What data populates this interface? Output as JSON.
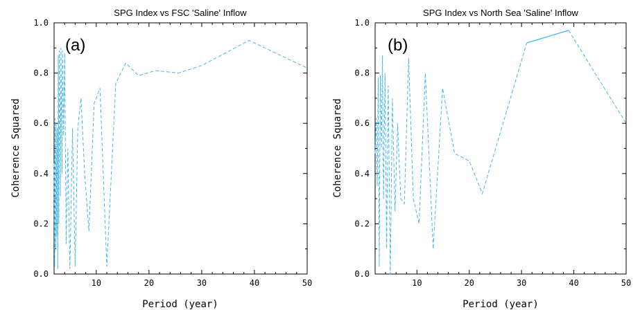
{
  "chart_data": [
    {
      "type": "line",
      "panel_label": "(a)",
      "title": "SPG Index vs FSC 'Saline' Inflow",
      "xlabel": "Period (year)",
      "ylabel": "Coherence Squared",
      "xlim": [
        2,
        50
      ],
      "ylim": [
        0,
        1
      ],
      "xticks": [
        10,
        20,
        30,
        40,
        50
      ],
      "yticks": [
        0.0,
        0.2,
        0.4,
        0.6,
        0.8,
        1.0
      ],
      "xtick_labels": [
        "10",
        "20",
        "30",
        "40",
        "50"
      ],
      "ytick_labels": [
        "0.0",
        "0.2",
        "0.4",
        "0.6",
        "0.8",
        "1.0"
      ],
      "line_color": "#45b7e6",
      "series": [
        {
          "style": "dashed",
          "x": [
            2.0,
            2.1,
            2.2,
            2.3,
            2.4,
            2.5,
            2.6,
            2.7,
            2.8,
            2.9,
            3.0,
            3.2,
            3.3,
            3.5,
            3.6,
            3.8,
            4.0,
            4.3,
            4.6,
            5.0,
            5.5,
            6.0,
            6.5,
            7.1,
            7.8,
            8.6,
            9.6,
            10.7,
            12.0,
            13.7,
            15.6,
            18.0,
            21.3,
            25.6,
            30.0,
            39.0,
            50.0
          ],
          "y": [
            0.44,
            0.03,
            0.62,
            0.1,
            0.6,
            0.15,
            0.58,
            0.02,
            0.87,
            0.2,
            0.89,
            0.31,
            0.9,
            0.4,
            0.89,
            0.55,
            0.88,
            0.12,
            0.5,
            0.02,
            0.58,
            0.03,
            0.58,
            0.7,
            0.4,
            0.17,
            0.68,
            0.74,
            0.03,
            0.76,
            0.84,
            0.79,
            0.81,
            0.8,
            0.83,
            0.93,
            0.82
          ]
        }
      ]
    },
    {
      "type": "line",
      "panel_label": "(b)",
      "title": "SPG Index vs North Sea 'Saline' Inflow",
      "xlabel": "Period (year)",
      "ylabel": "Coherence Squared",
      "xlim": [
        2,
        50
      ],
      "ylim": [
        0,
        1
      ],
      "xticks": [
        10,
        20,
        30,
        40,
        50
      ],
      "yticks": [
        0.0,
        0.2,
        0.4,
        0.6,
        0.8,
        1.0
      ],
      "xtick_labels": [
        "10",
        "20",
        "30",
        "40",
        "50"
      ],
      "ytick_labels": [
        "0.0",
        "0.2",
        "0.4",
        "0.6",
        "0.8",
        "1.0"
      ],
      "line_color": "#45b7e6",
      "series": [
        {
          "style": "dashed",
          "x": [
            2.0,
            2.2,
            2.4,
            2.6,
            2.8,
            3.0,
            3.2,
            3.4,
            3.6,
            3.9,
            4.2,
            4.5,
            4.9,
            5.3,
            5.8,
            6.3,
            6.9,
            7.6,
            8.4,
            9.3,
            10.4,
            11.6,
            13.1,
            14.9,
            17.2,
            20.0,
            22.5,
            31.0
          ],
          "y": [
            0.48,
            0.62,
            0.35,
            0.78,
            0.03,
            0.79,
            0.5,
            0.87,
            0.3,
            0.8,
            0.1,
            0.75,
            0.0,
            0.7,
            0.25,
            0.6,
            0.3,
            0.28,
            0.86,
            0.3,
            0.2,
            0.8,
            0.1,
            0.74,
            0.48,
            0.45,
            0.32,
            0.92
          ]
        },
        {
          "style": "solid",
          "x": [
            31.0,
            39.0
          ],
          "y": [
            0.92,
            0.97
          ]
        },
        {
          "style": "dashed",
          "x": [
            39.0,
            50.0
          ],
          "y": [
            0.97,
            0.6
          ]
        }
      ]
    }
  ]
}
